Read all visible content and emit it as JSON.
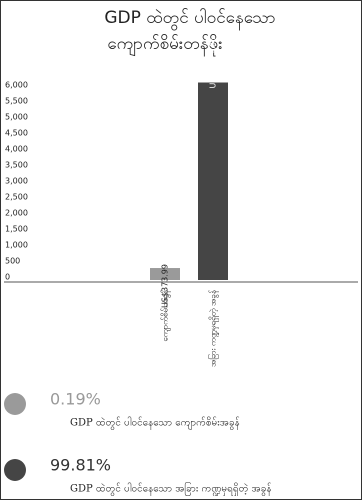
{
  "chart_data": {
    "type": "bar",
    "title": [
      "GDP ထဲတွင် ပါဝင်နေသော",
      "ကျောက်စိမ်းတန်ဖိုး"
    ],
    "categories": [
      "ကျောက်စိမ်းအခွန်",
      "အခြား ကဏ္ဍမှရရှိတဲ့ အခွန်"
    ],
    "values": [
      373.99,
      6171.85
    ],
    "value_labels": [
      "US$373.99",
      "US$6,171.85"
    ],
    "colors": [
      "#9a9a9a",
      "#454545"
    ],
    "ylim": [
      0,
      6000
    ],
    "yticks": [
      0,
      500,
      {
        "value": 1000,
        "label": "1,000"
      },
      {
        "value": 1500,
        "label": "1,500"
      },
      {
        "value": 2000,
        "label": "2,000"
      },
      {
        "value": 2500,
        "label": "2,500"
      },
      {
        "value": 3000,
        "label": "3,000"
      },
      {
        "value": 3500,
        "label": "3,500"
      },
      {
        "value": 4000,
        "label": "4,000"
      },
      {
        "value": 4500,
        "label": "4,500"
      },
      {
        "value": 5000,
        "label": "5,000"
      },
      {
        "value": 5500,
        "label": "5,500"
      },
      {
        "value": 6000,
        "label": "6,000"
      }
    ],
    "shares": {
      "values": [
        0.19,
        99.81
      ],
      "value_labels": [
        "0.19%",
        "99.81%"
      ],
      "names": [
        "GDP ထဲတွင် ပါဝင်နေသော ကျောက်စိမ်းအခွန်",
        "GDP ထဲတွင် ပါဝင်နေသော အခြား ကဏ္ဍမှရရှိတဲ့ အခွန်"
      ],
      "colors": [
        "#9a9a9a",
        "#454545"
      ]
    }
  }
}
